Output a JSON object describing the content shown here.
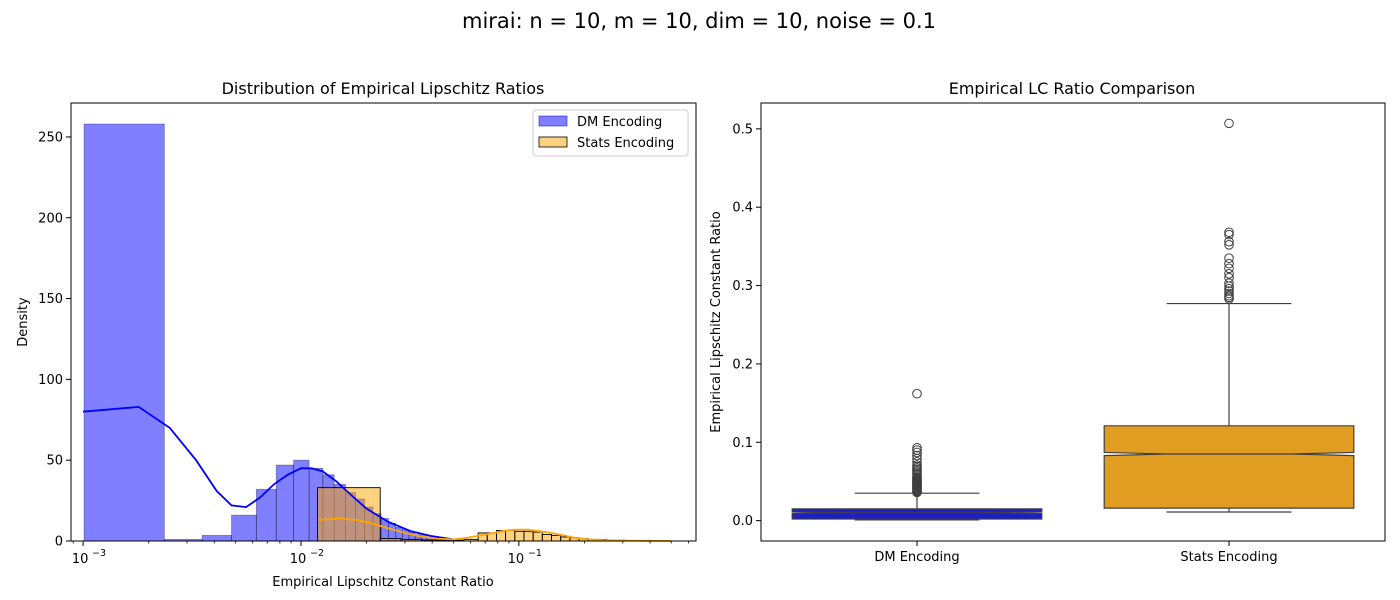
{
  "suptitle": "mirai: n = 10, m = 10, dim = 10, noise = 0.1",
  "colors": {
    "dm": "#0000ff",
    "stats": "#ffa500",
    "dm_box": "#1e1ec8",
    "stats_box": "#e09d22",
    "axis": "#000000",
    "whisker": "#3f3f3f"
  },
  "chart_data": [
    {
      "type": "histogram",
      "title": "Distribution of Empirical Lipschitz Ratios",
      "xlabel": "Empirical Lipschitz Constant Ratio",
      "ylabel": "Density",
      "xscale": "log",
      "xlim": [
        0.00088,
        0.65
      ],
      "ylim": [
        0,
        271
      ],
      "yticks": [
        0,
        50,
        100,
        150,
        200,
        250
      ],
      "xticks": [
        {
          "value": 0.001,
          "label": "10",
          "exp": "−3"
        },
        {
          "value": 0.01,
          "label": "10",
          "exp": "−2"
        },
        {
          "value": 0.1,
          "label": "10",
          "exp": "−1"
        }
      ],
      "legend": {
        "placement": "top-right",
        "entries": [
          "DM Encoding",
          "Stats Encoding"
        ]
      },
      "series": [
        {
          "name": "DM Encoding",
          "bins": [
            {
              "x0": 0.00101,
              "x1": 0.00236,
              "density": 258
            },
            {
              "x0": 0.00236,
              "x1": 0.00352,
              "density": 1
            },
            {
              "x0": 0.00352,
              "x1": 0.0048,
              "density": 3.5
            },
            {
              "x0": 0.0048,
              "x1": 0.00624,
              "density": 16
            },
            {
              "x0": 0.00624,
              "x1": 0.0077,
              "density": 32
            },
            {
              "x0": 0.0077,
              "x1": 0.00925,
              "density": 47
            },
            {
              "x0": 0.00925,
              "x1": 0.0109,
              "density": 50
            },
            {
              "x0": 0.0109,
              "x1": 0.0126,
              "density": 45
            },
            {
              "x0": 0.0126,
              "x1": 0.0142,
              "density": 41
            },
            {
              "x0": 0.0142,
              "x1": 0.016,
              "density": 35
            },
            {
              "x0": 0.016,
              "x1": 0.0178,
              "density": 30
            },
            {
              "x0": 0.0178,
              "x1": 0.0196,
              "density": 26
            },
            {
              "x0": 0.0196,
              "x1": 0.0214,
              "density": 21
            },
            {
              "x0": 0.0214,
              "x1": 0.0233,
              "density": 17
            },
            {
              "x0": 0.0233,
              "x1": 0.0252,
              "density": 14
            },
            {
              "x0": 0.0252,
              "x1": 0.0272,
              "density": 11
            },
            {
              "x0": 0.0272,
              "x1": 0.0292,
              "density": 8.5
            },
            {
              "x0": 0.0292,
              "x1": 0.0313,
              "density": 7
            },
            {
              "x0": 0.0313,
              "x1": 0.0334,
              "density": 5.5
            },
            {
              "x0": 0.0334,
              "x1": 0.0356,
              "density": 4
            },
            {
              "x0": 0.0356,
              "x1": 0.0378,
              "density": 3.5
            },
            {
              "x0": 0.0378,
              "x1": 0.04,
              "density": 2.5
            },
            {
              "x0": 0.04,
              "x1": 0.043,
              "density": 2
            }
          ],
          "kde": {
            "x": [
              0.001,
              0.0018,
              0.0025,
              0.0033,
              0.0041,
              0.0048,
              0.0056,
              0.0065,
              0.0075,
              0.0087,
              0.01,
              0.0112,
              0.0126,
              0.0145,
              0.0168,
              0.02,
              0.025,
              0.032,
              0.04,
              0.05
            ],
            "y": [
              80,
              83,
              70,
              50,
              31,
              22,
              21,
              27,
              35,
              41,
              45,
              45,
              43,
              37,
              29,
              20,
              12,
              6,
              3,
              1
            ]
          }
        },
        {
          "name": "Stats Encoding",
          "bins": [
            {
              "x0": 0.0119,
              "x1": 0.0231,
              "density": 33
            },
            {
              "x0": 0.0231,
              "x1": 0.0288,
              "density": 1.5
            },
            {
              "x0": 0.0288,
              "x1": 0.036,
              "density": 1
            },
            {
              "x0": 0.036,
              "x1": 0.0449,
              "density": 0.6
            },
            {
              "x0": 0.0449,
              "x1": 0.056,
              "density": 0.5
            },
            {
              "x0": 0.056,
              "x1": 0.065,
              "density": 1
            },
            {
              "x0": 0.065,
              "x1": 0.0716,
              "density": 5
            },
            {
              "x0": 0.0716,
              "x1": 0.0789,
              "density": 5
            },
            {
              "x0": 0.0789,
              "x1": 0.0869,
              "density": 6.5
            },
            {
              "x0": 0.0869,
              "x1": 0.0958,
              "density": 6.5
            },
            {
              "x0": 0.0958,
              "x1": 0.1055,
              "density": 6
            },
            {
              "x0": 0.1055,
              "x1": 0.1163,
              "density": 6
            },
            {
              "x0": 0.1163,
              "x1": 0.1281,
              "density": 5.5
            },
            {
              "x0": 0.1281,
              "x1": 0.1412,
              "density": 4
            },
            {
              "x0": 0.1412,
              "x1": 0.1556,
              "density": 3.5
            },
            {
              "x0": 0.1556,
              "x1": 0.1714,
              "density": 2.5
            },
            {
              "x0": 0.1714,
              "x1": 0.1889,
              "density": 2
            },
            {
              "x0": 0.1889,
              "x1": 0.2081,
              "density": 1.5
            },
            {
              "x0": 0.2081,
              "x1": 0.2293,
              "density": 1
            },
            {
              "x0": 0.2293,
              "x1": 0.2527,
              "density": 1
            },
            {
              "x0": 0.2527,
              "x1": 0.2784,
              "density": 0.6
            },
            {
              "x0": 0.2784,
              "x1": 0.3068,
              "density": 0.5
            }
          ],
          "kde": {
            "x": [
              0.012,
              0.015,
              0.018,
              0.021,
              0.025,
              0.03,
              0.035,
              0.042,
              0.05,
              0.058,
              0.067,
              0.077,
              0.087,
              0.098,
              0.11,
              0.125,
              0.14,
              0.16,
              0.18,
              0.21,
              0.25,
              0.3,
              0.36,
              0.43,
              0.5
            ],
            "y": [
              13,
              14,
              13,
              11,
              8,
              5,
              3,
              1.5,
              1,
              2,
              3.5,
              5,
              6.5,
              7,
              7,
              6,
              5,
              3.5,
              2,
              1,
              0.5,
              0.3,
              0.2,
              0.1,
              0.05
            ]
          }
        }
      ]
    },
    {
      "type": "box",
      "title": "Empirical LC Ratio Comparison",
      "xlabel": "",
      "ylabel": "Empirical Lipschitz Constant Ratio",
      "ylim": [
        -0.026,
        0.533
      ],
      "yticks": [
        0.0,
        0.1,
        0.2,
        0.3,
        0.4,
        0.5
      ],
      "ytick_labels": [
        "0.0",
        "0.1",
        "0.2",
        "0.3",
        "0.4",
        "0.5"
      ],
      "categories": [
        "DM Encoding",
        "Stats Encoding"
      ],
      "boxes": [
        {
          "name": "DM Encoding",
          "whisker_low": 0.001,
          "q1": 0.002,
          "median": 0.01,
          "q3": 0.015,
          "whisker_high": 0.035,
          "notch_low": 0.009,
          "notch_high": 0.011,
          "outliers": [
            0.036,
            0.037,
            0.038,
            0.039,
            0.04,
            0.041,
            0.042,
            0.043,
            0.044,
            0.045,
            0.046,
            0.047,
            0.048,
            0.049,
            0.05,
            0.051,
            0.052,
            0.053,
            0.054,
            0.055,
            0.057,
            0.059,
            0.061,
            0.063,
            0.065,
            0.067,
            0.069,
            0.071,
            0.075,
            0.079,
            0.083,
            0.087,
            0.09,
            0.093,
            0.162
          ]
        },
        {
          "name": "Stats Encoding",
          "whisker_low": 0.011,
          "q1": 0.016,
          "median": 0.085,
          "q3": 0.121,
          "whisker_high": 0.277,
          "notch_low": 0.083,
          "notch_high": 0.087,
          "outliers": [
            0.283,
            0.285,
            0.287,
            0.29,
            0.293,
            0.296,
            0.299,
            0.303,
            0.31,
            0.315,
            0.322,
            0.328,
            0.335,
            0.352,
            0.356,
            0.365,
            0.368,
            0.507
          ]
        }
      ]
    }
  ]
}
